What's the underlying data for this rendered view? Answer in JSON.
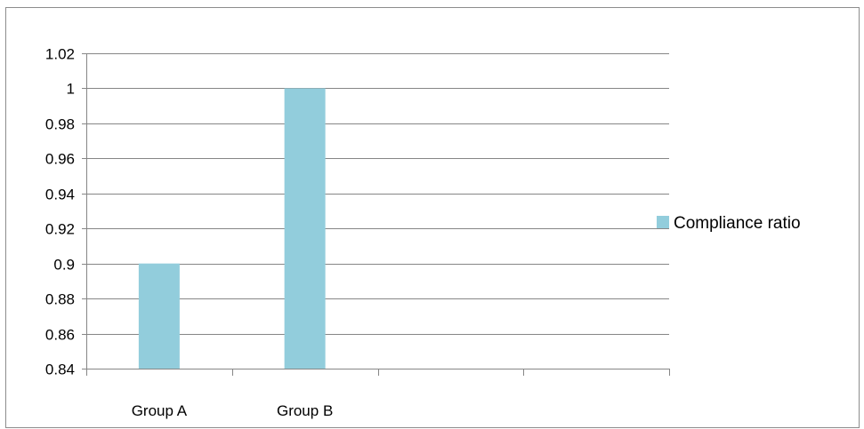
{
  "chart_data": {
    "type": "bar",
    "categories": [
      "Group A",
      "Group B",
      "",
      ""
    ],
    "series": [
      {
        "name": "Compliance ratio",
        "values": [
          0.9,
          1.0,
          null,
          null
        ],
        "color": "#92cddc"
      }
    ],
    "ylim": [
      0.84,
      1.02
    ],
    "yticks": [
      "1.02",
      "1",
      "0.98",
      "0.96",
      "0.94",
      "0.92",
      "0.9",
      "0.88",
      "0.86",
      "0.84"
    ],
    "title": "",
    "xlabel": "",
    "ylabel": "",
    "grid": true,
    "legend_position": "right",
    "gridline_color": "#868686"
  }
}
